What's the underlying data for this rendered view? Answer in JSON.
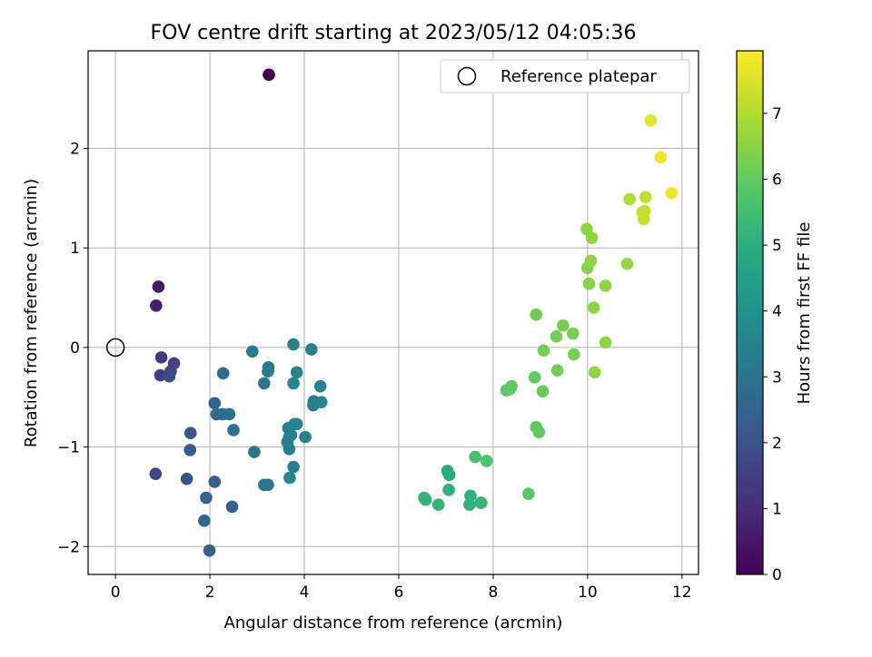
{
  "chart_data": {
    "type": "scatter",
    "title": "FOV centre drift starting at 2023/05/12 04:05:36",
    "xlabel": "Angular distance from reference (arcmin)",
    "ylabel": "Rotation from reference (arcmin)",
    "xlim": [
      -0.58,
      12.35
    ],
    "ylim": [
      -2.28,
      2.98
    ],
    "x_ticks": [
      0,
      2,
      4,
      6,
      8,
      10,
      12
    ],
    "y_ticks": [
      -2,
      -1,
      0,
      1,
      2
    ],
    "x_tick_labels": [
      "0",
      "2",
      "4",
      "6",
      "8",
      "10",
      "12"
    ],
    "y_tick_labels": [
      "−2",
      "−1",
      "0",
      "1",
      "2"
    ],
    "grid": true,
    "legend": {
      "placement": "top-right",
      "entries": [
        "Reference platepar"
      ]
    },
    "reference_point": {
      "x": 0,
      "y": 0,
      "label": "Reference platepar",
      "marker": "open-circle"
    },
    "colorbar": {
      "label": "Hours from first FF file",
      "colormap": "viridis",
      "range": [
        0,
        7.95
      ],
      "ticks": [
        0,
        1,
        2,
        3,
        4,
        5,
        6,
        7
      ],
      "tick_labels": [
        "0",
        "1",
        "2",
        "3",
        "4",
        "5",
        "6",
        "7"
      ]
    },
    "series": [
      {
        "marker": "filled-circle",
        "x": [
          3.25,
          0.91,
          0.86,
          0.97,
          0.95,
          1.24,
          1.17,
          1.14,
          0.85,
          1.51,
          1.59,
          1.58,
          2.1,
          2.1,
          1.92,
          1.88,
          1.99,
          2.47,
          2.28,
          2.14,
          2.27,
          2.41,
          2.5,
          2.9,
          2.94,
          3.15,
          3.24,
          3.23,
          3.15,
          3.23,
          3.69,
          3.77,
          3.77,
          3.84,
          3.79,
          3.66,
          3.72,
          3.64,
          3.68,
          3.68,
          3.77,
          4.02,
          4.15,
          4.2,
          4.19,
          4.34,
          4.36,
          3.84,
          6.54,
          6.57,
          6.84,
          7.03,
          7.07,
          7.06,
          7.5,
          7.52,
          7.62,
          7.75,
          7.74,
          7.86,
          8.75,
          8.28,
          8.35,
          8.39,
          8.88,
          8.91,
          8.97,
          8.91,
          9.05,
          9.07,
          9.34,
          9.36,
          9.48,
          9.71,
          9.69,
          9.98,
          10.0,
          10.07,
          10.03,
          10.09,
          10.13,
          10.15,
          10.38,
          10.38,
          10.84,
          10.89,
          11.16,
          11.21,
          11.23,
          11.19,
          11.34,
          11.55,
          11.78
        ],
        "y": [
          2.74,
          0.61,
          0.42,
          -0.1,
          -0.28,
          -0.16,
          -0.24,
          -0.29,
          -1.27,
          -1.32,
          -0.86,
          -1.03,
          -0.56,
          -1.35,
          -1.51,
          -1.74,
          -2.04,
          -1.6,
          -0.26,
          -0.67,
          -0.67,
          -0.67,
          -0.83,
          -0.04,
          -1.05,
          -0.36,
          -0.2,
          -0.24,
          -1.38,
          -1.38,
          -1.31,
          -1.2,
          -0.36,
          -0.25,
          -0.77,
          -0.81,
          -0.88,
          -0.95,
          -1.02,
          -0.9,
          0.03,
          -0.9,
          -0.02,
          -0.54,
          -0.58,
          -0.39,
          -0.55,
          -0.77,
          -1.51,
          -1.53,
          -1.58,
          -1.24,
          -1.28,
          -1.43,
          -1.58,
          -1.49,
          -1.1,
          -1.56,
          -1.56,
          -1.14,
          -1.47,
          -0.43,
          -0.42,
          -0.39,
          -0.3,
          0.33,
          -0.85,
          -0.8,
          -0.44,
          -0.03,
          0.11,
          -0.23,
          0.22,
          -0.07,
          0.14,
          1.19,
          0.8,
          0.87,
          0.64,
          1.1,
          0.4,
          -0.25,
          0.62,
          0.05,
          0.84,
          1.49,
          1.36,
          1.37,
          1.51,
          1.29,
          2.28,
          1.91,
          1.55
        ],
        "hours": [
          0.0,
          0.6,
          0.7,
          1.4,
          1.5,
          1.6,
          1.7,
          1.8,
          1.8,
          2.1,
          2.2,
          2.3,
          2.5,
          2.4,
          2.5,
          2.6,
          2.5,
          2.5,
          2.9,
          2.8,
          2.8,
          2.9,
          3.0,
          3.3,
          3.1,
          3.1,
          3.2,
          3.3,
          3.1,
          3.1,
          3.6,
          3.5,
          3.6,
          3.6,
          3.6,
          3.4,
          3.5,
          3.5,
          3.4,
          3.4,
          3.5,
          3.5,
          3.5,
          3.5,
          3.5,
          3.6,
          3.6,
          3.6,
          5.2,
          5.2,
          5.2,
          4.9,
          4.9,
          5.1,
          5.2,
          5.1,
          5.6,
          5.3,
          5.3,
          5.7,
          5.9,
          5.9,
          6.0,
          6.0,
          6.0,
          6.2,
          6.0,
          6.0,
          6.1,
          6.3,
          6.3,
          6.2,
          6.3,
          6.3,
          6.3,
          6.6,
          6.5,
          6.6,
          6.5,
          6.6,
          6.6,
          6.6,
          6.6,
          6.6,
          6.7,
          7.0,
          7.3,
          7.3,
          7.2,
          7.3,
          7.6,
          7.8,
          7.8
        ]
      }
    ]
  }
}
